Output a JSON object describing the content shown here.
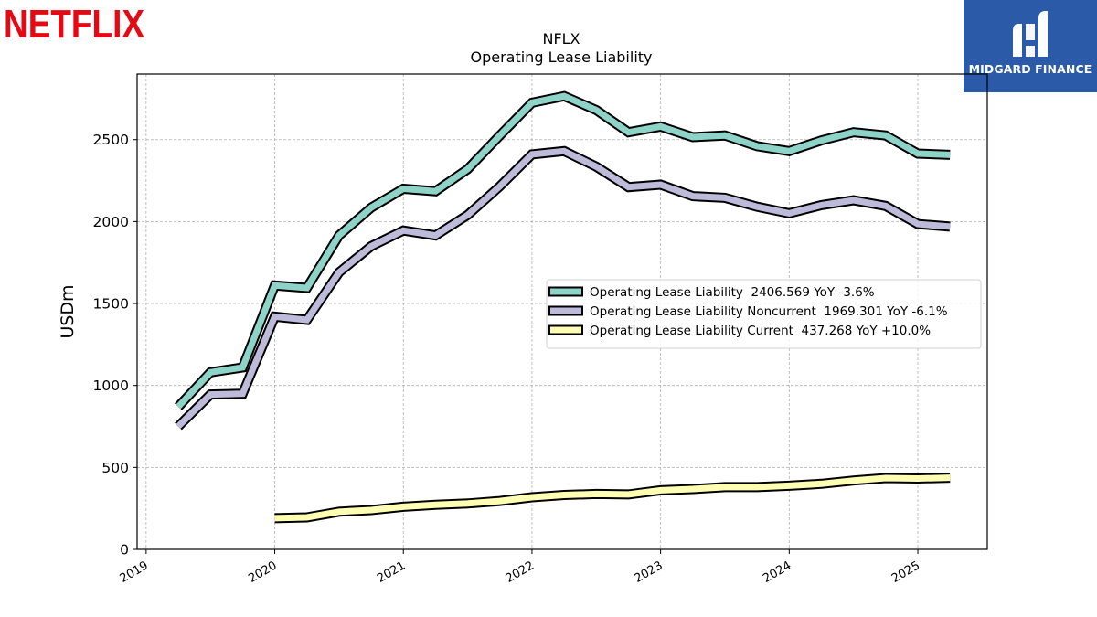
{
  "header": {
    "company_logo_text": "NETFLIX",
    "partner_name": "MIDGARD FINANCE"
  },
  "colors": {
    "netflix_red": "#e50914",
    "partner_blue": "#2a5aa8"
  },
  "chart_data": {
    "type": "line",
    "title": "NFLX",
    "subtitle": "Operating Lease Liability",
    "xlabel": "",
    "ylabel": "USDm",
    "xlim": [
      2018.93,
      2025.54
    ],
    "ylim": [
      0,
      2900
    ],
    "yticks": [
      0,
      500,
      1000,
      1500,
      2000,
      2500
    ],
    "xticks": [
      2019,
      2020,
      2021,
      2022,
      2023,
      2024,
      2025
    ],
    "xtick_labels": [
      "2019",
      "2020",
      "2021",
      "2022",
      "2023",
      "2024",
      "2025"
    ],
    "grid": true,
    "legend_position": "center-right",
    "series": [
      {
        "name": "Operating Lease Liability",
        "legend_label": "Operating Lease Liability  2406.569 YoY -3.6%",
        "color": "#8dd3c7",
        "x": [
          2019.25,
          2019.5,
          2019.75,
          2020.0,
          2020.25,
          2020.5,
          2020.75,
          2021.0,
          2021.25,
          2021.5,
          2021.75,
          2022.0,
          2022.25,
          2022.5,
          2022.75,
          2023.0,
          2023.25,
          2023.5,
          2023.75,
          2024.0,
          2024.25,
          2024.5,
          2024.75,
          2025.0,
          2025.25
        ],
        "values": [
          870,
          1080,
          1110,
          1610,
          1595,
          1915,
          2085,
          2200,
          2185,
          2320,
          2525,
          2725,
          2765,
          2680,
          2545,
          2580,
          2515,
          2525,
          2460,
          2430,
          2495,
          2545,
          2525,
          2415,
          2407
        ]
      },
      {
        "name": "Operating Lease Liability Noncurrent",
        "legend_label": "Operating Lease Liability Noncurrent  1969.301 YoY -6.1%",
        "color": "#bebada",
        "x": [
          2019.25,
          2019.5,
          2019.75,
          2020.0,
          2020.25,
          2020.5,
          2020.75,
          2021.0,
          2021.25,
          2021.5,
          2021.75,
          2022.0,
          2022.25,
          2022.5,
          2022.75,
          2023.0,
          2023.25,
          2023.5,
          2023.75,
          2024.0,
          2024.25,
          2024.5,
          2024.75,
          2025.0,
          2025.25
        ],
        "values": [
          750,
          945,
          950,
          1420,
          1400,
          1690,
          1850,
          1945,
          1915,
          2040,
          2215,
          2410,
          2430,
          2335,
          2210,
          2225,
          2155,
          2145,
          2090,
          2050,
          2100,
          2130,
          2095,
          1985,
          1969
        ]
      },
      {
        "name": "Operating Lease Liability Current",
        "legend_label": "Operating Lease Liability Current  437.268 YoY +10.0%",
        "color": "#ffffb3",
        "x": [
          2020.0,
          2020.25,
          2020.5,
          2020.75,
          2021.0,
          2021.25,
          2021.5,
          2021.75,
          2022.0,
          2022.25,
          2022.5,
          2022.75,
          2023.0,
          2023.25,
          2023.5,
          2023.75,
          2024.0,
          2024.25,
          2024.5,
          2024.75,
          2025.0,
          2025.25
        ],
        "values": [
          190,
          195,
          230,
          240,
          260,
          272,
          280,
          295,
          318,
          332,
          338,
          335,
          360,
          368,
          380,
          380,
          388,
          400,
          420,
          435,
          432,
          437
        ]
      }
    ]
  }
}
